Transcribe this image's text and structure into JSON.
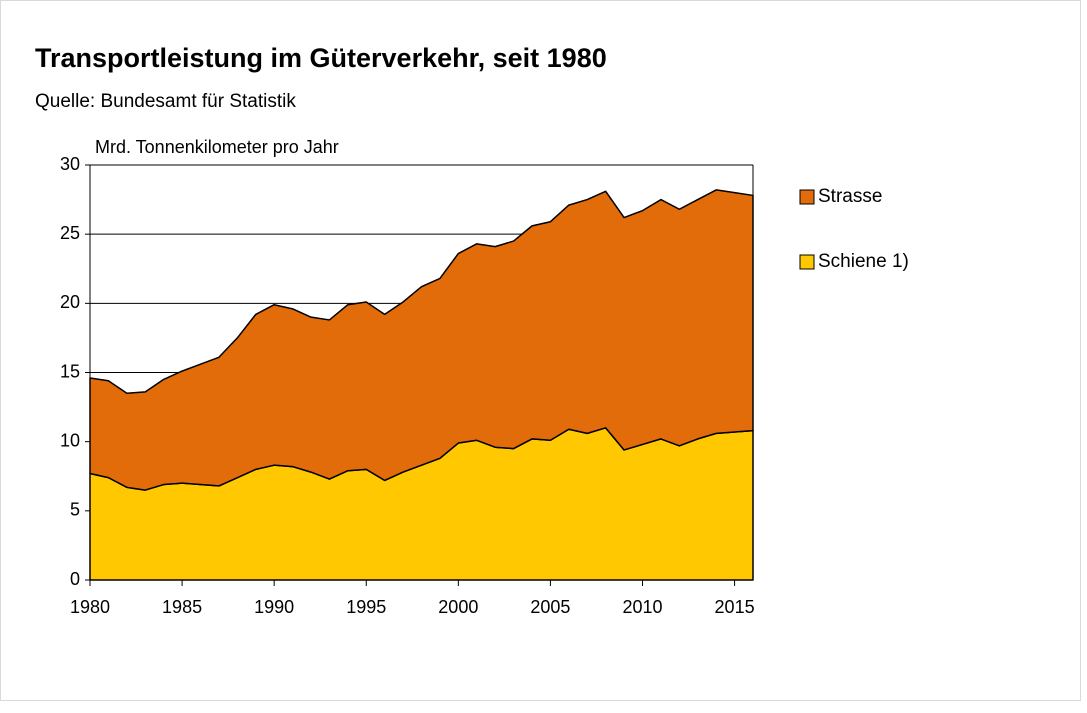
{
  "chart_data": {
    "type": "stacked_area",
    "title": "Transportleistung im Güterverkehr, seit 1980",
    "subtitle": "Quelle: Bundesamt für Statistik",
    "ylabel": "Mrd. Tonnenkilometer pro Jahr",
    "x": [
      1980,
      1981,
      1982,
      1983,
      1984,
      1985,
      1986,
      1987,
      1988,
      1989,
      1990,
      1991,
      1992,
      1993,
      1994,
      1995,
      1996,
      1997,
      1998,
      1999,
      2000,
      2001,
      2002,
      2003,
      2004,
      2005,
      2006,
      2007,
      2008,
      2009,
      2010,
      2011,
      2012,
      2013,
      2014,
      2015,
      2016
    ],
    "series": [
      {
        "name": "Schiene 1)",
        "color": "#ffc800",
        "values": [
          7.7,
          7.4,
          6.7,
          6.5,
          6.9,
          7.0,
          6.9,
          6.8,
          7.4,
          8.0,
          8.3,
          8.2,
          7.8,
          7.3,
          7.9,
          8.0,
          7.2,
          7.8,
          8.3,
          8.8,
          9.9,
          10.1,
          9.6,
          9.5,
          10.2,
          10.1,
          10.9,
          10.6,
          11.0,
          9.4,
          9.8,
          10.2,
          9.7,
          10.2,
          10.6,
          10.7,
          10.8
        ]
      },
      {
        "name": "Strasse",
        "color": "#e36c0a",
        "values": [
          6.9,
          7.0,
          6.8,
          7.1,
          7.6,
          8.1,
          8.7,
          9.3,
          10.1,
          11.2,
          11.6,
          11.4,
          11.2,
          11.5,
          12.0,
          12.1,
          12.0,
          12.3,
          12.9,
          13.0,
          13.7,
          14.2,
          14.5,
          15.0,
          15.4,
          15.8,
          16.2,
          16.9,
          17.1,
          16.8,
          16.9,
          17.3,
          17.1,
          17.3,
          17.6,
          17.3,
          17.0
        ]
      }
    ],
    "xlim": [
      1980,
      2016
    ],
    "xticks": [
      1980,
      1985,
      1990,
      1995,
      2000,
      2005,
      2010,
      2015
    ],
    "ylim": [
      0,
      30
    ],
    "yticks": [
      0,
      5,
      10,
      15,
      20,
      25,
      30
    ],
    "grid": true
  }
}
